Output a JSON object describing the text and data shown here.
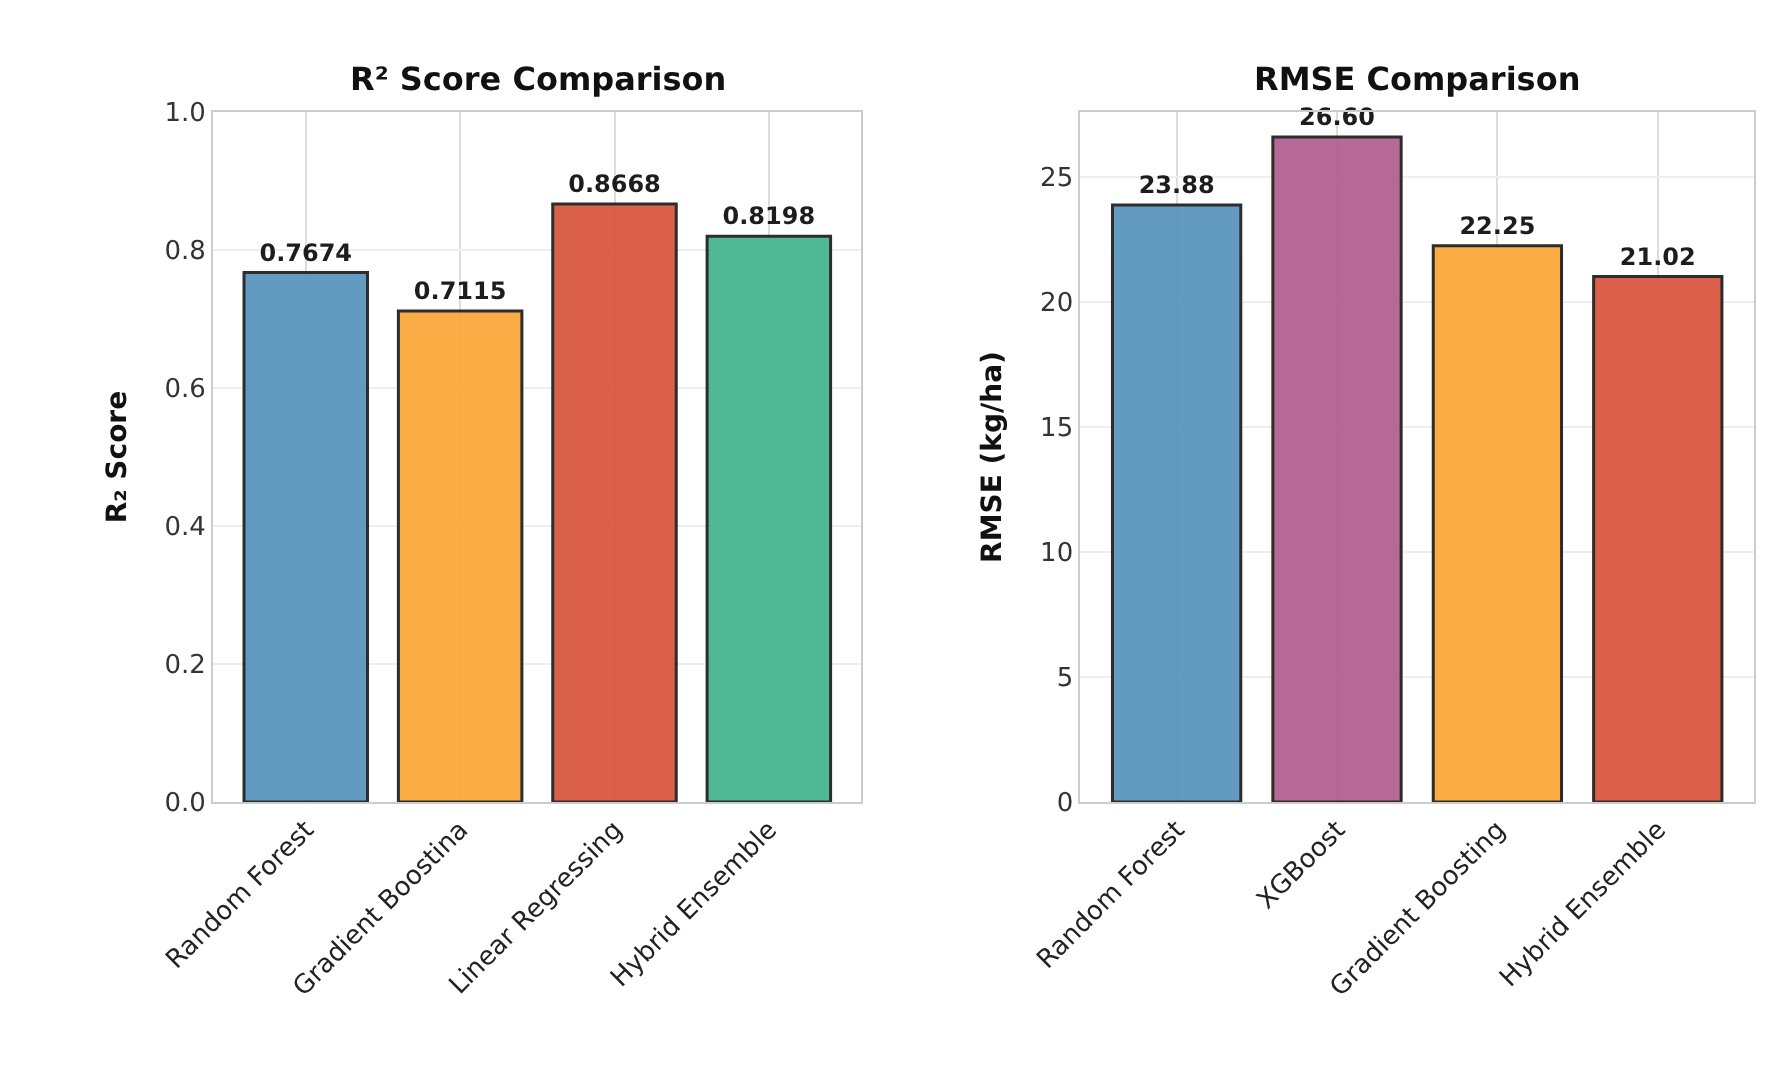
{
  "chart_data": [
    {
      "type": "bar",
      "title": "R² Score Comparison",
      "ylabel": "R₂ Score",
      "categories": [
        "Random Forest",
        "Gradient Boostina",
        "Linear Regressing",
        "Hybrid Ensemble"
      ],
      "values": [
        0.7674,
        0.7115,
        0.8668,
        0.8198
      ],
      "value_labels": [
        "0.7674",
        "0.7115",
        "0.8668",
        "0.8198"
      ],
      "colors": [
        "#5b95bd",
        "#fba83a",
        "#d95840",
        "#47b58f"
      ],
      "ylim": [
        0,
        1.0
      ],
      "yticks": [
        {
          "value": 0,
          "label": "0.0"
        },
        0.2,
        0.4,
        0.6,
        0.8,
        {
          "value": 1,
          "label": "1.0"
        }
      ],
      "grid": true
    },
    {
      "type": "bar",
      "title": "RMSE Comparison",
      "ylabel": "RMSE (kg/ha)",
      "categories": [
        "Random Forest",
        "XGBoost",
        "Gradient Boosting",
        "Hybrid Ensemble"
      ],
      "values": [
        23.88,
        26.6,
        22.25,
        21.02
      ],
      "value_labels": [
        "23.88",
        "26.60",
        "22.25",
        "21.02"
      ],
      "colors": [
        "#5b95bd",
        "#b3618f",
        "#fba83a",
        "#d95840"
      ],
      "ylim": [
        0,
        27.6
      ],
      "yticks": [
        0,
        5,
        10,
        15,
        20,
        25
      ],
      "grid": true
    }
  ]
}
